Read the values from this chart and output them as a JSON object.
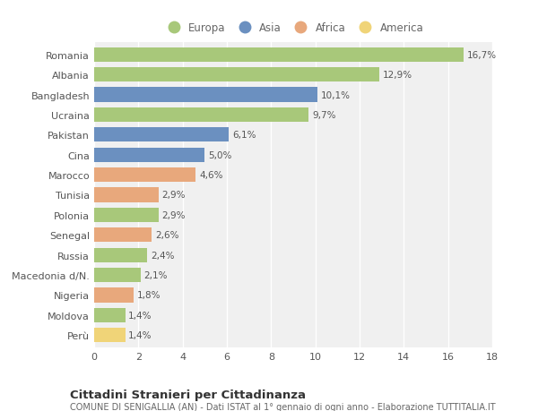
{
  "countries": [
    "Romania",
    "Albania",
    "Bangladesh",
    "Ucraina",
    "Pakistan",
    "Cina",
    "Marocco",
    "Tunisia",
    "Polonia",
    "Senegal",
    "Russia",
    "Macedonia d/N.",
    "Nigeria",
    "Moldova",
    "Perù"
  ],
  "values": [
    16.7,
    12.9,
    10.1,
    9.7,
    6.1,
    5.0,
    4.6,
    2.9,
    2.9,
    2.6,
    2.4,
    2.1,
    1.8,
    1.4,
    1.4
  ],
  "labels": [
    "16,7%",
    "12,9%",
    "10,1%",
    "9,7%",
    "6,1%",
    "5,0%",
    "4,6%",
    "2,9%",
    "2,9%",
    "2,6%",
    "2,4%",
    "2,1%",
    "1,8%",
    "1,4%",
    "1,4%"
  ],
  "continents": [
    "Europa",
    "Europa",
    "Asia",
    "Europa",
    "Asia",
    "Asia",
    "Africa",
    "Africa",
    "Europa",
    "Africa",
    "Europa",
    "Europa",
    "Africa",
    "Europa",
    "America"
  ],
  "colors": {
    "Europa": "#a8c87a",
    "Asia": "#6b90c0",
    "Africa": "#e8a87c",
    "America": "#f0d478"
  },
  "legend_order": [
    "Europa",
    "Asia",
    "Africa",
    "America"
  ],
  "title": "Cittadini Stranieri per Cittadinanza",
  "subtitle": "COMUNE DI SENIGALLIA (AN) - Dati ISTAT al 1° gennaio di ogni anno - Elaborazione TUTTITALIA.IT",
  "xlim": [
    0,
    18
  ],
  "xticks": [
    0,
    2,
    4,
    6,
    8,
    10,
    12,
    14,
    16,
    18
  ],
  "background_color": "#ffffff",
  "plot_background": "#f0f0f0"
}
